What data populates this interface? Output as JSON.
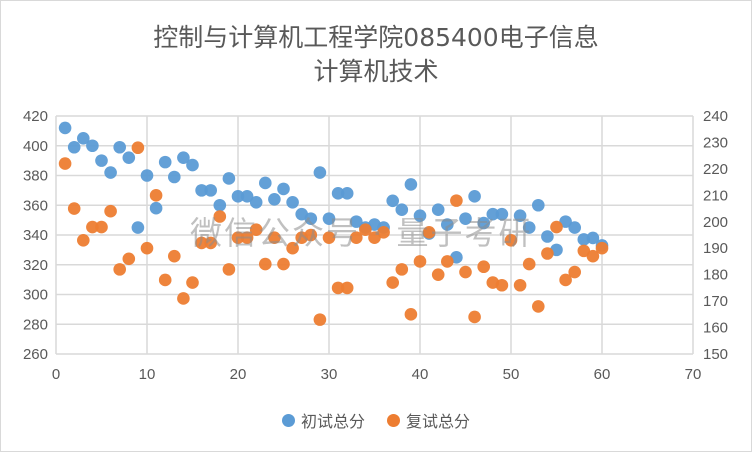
{
  "chart_data": {
    "type": "scatter",
    "title_lines": [
      "控制与计算机工程学院085400电子信息",
      "计算机技术"
    ],
    "xlim": [
      0,
      70
    ],
    "xticks": [
      0,
      10,
      20,
      30,
      40,
      50,
      60,
      70
    ],
    "ylim_left": [
      260,
      420
    ],
    "yticks_left": [
      260,
      280,
      300,
      320,
      340,
      360,
      380,
      400,
      420
    ],
    "ylim_right": [
      150,
      240
    ],
    "yticks_right": [
      150,
      160,
      170,
      180,
      190,
      200,
      210,
      220,
      230,
      240
    ],
    "grid": true,
    "legend_position": "bottom",
    "series": [
      {
        "name": "初试总分",
        "axis": "left",
        "color": "#5b9bd5",
        "x": [
          1,
          2,
          3,
          4,
          5,
          6,
          7,
          8,
          9,
          10,
          11,
          12,
          13,
          14,
          15,
          16,
          17,
          18,
          19,
          20,
          21,
          22,
          23,
          24,
          25,
          26,
          27,
          28,
          29,
          30,
          31,
          32,
          33,
          34,
          35,
          36,
          37,
          38,
          39,
          40,
          41,
          42,
          43,
          44,
          45,
          46,
          47,
          48,
          49,
          51,
          52,
          53,
          54,
          55,
          56,
          57,
          58,
          59,
          60
        ],
        "y": [
          412,
          399,
          405,
          400,
          390,
          382,
          399,
          392,
          345,
          380,
          358,
          389,
          379,
          392,
          387,
          370,
          370,
          360,
          378,
          366,
          366,
          362,
          375,
          364,
          371,
          362,
          354,
          351,
          382,
          351,
          368,
          368,
          349,
          345,
          347,
          345,
          363,
          357,
          374,
          353,
          341,
          357,
          347,
          325,
          351,
          366,
          348,
          354,
          354,
          353,
          345,
          360,
          339,
          330,
          349,
          345,
          337,
          338,
          333
        ]
      },
      {
        "name": "复试总分",
        "axis": "right",
        "color": "#ed7d31",
        "x": [
          1,
          2,
          3,
          4,
          5,
          6,
          7,
          8,
          9,
          10,
          11,
          12,
          13,
          14,
          15,
          16,
          17,
          18,
          19,
          20,
          21,
          22,
          23,
          24,
          25,
          26,
          27,
          28,
          29,
          30,
          31,
          32,
          33,
          34,
          35,
          36,
          37,
          38,
          39,
          40,
          41,
          42,
          43,
          44,
          45,
          46,
          47,
          48,
          49,
          50,
          51,
          52,
          53,
          54,
          55,
          56,
          57,
          58,
          59,
          60
        ],
        "y": [
          222,
          205,
          193,
          198,
          198,
          204,
          182,
          186,
          228,
          190,
          210,
          178,
          187,
          171,
          177,
          192,
          192,
          202,
          182,
          194,
          194,
          197,
          184,
          194,
          184,
          190,
          194,
          195,
          163,
          194,
          175,
          175,
          194,
          197,
          194,
          196,
          177,
          182,
          165,
          185,
          196,
          180,
          185,
          208,
          181,
          164,
          183,
          177,
          176,
          193,
          176,
          184,
          168,
          188,
          198,
          178,
          181,
          189,
          187,
          190
        ]
      }
    ]
  },
  "watermark": "微信公众号 · 量子考研"
}
